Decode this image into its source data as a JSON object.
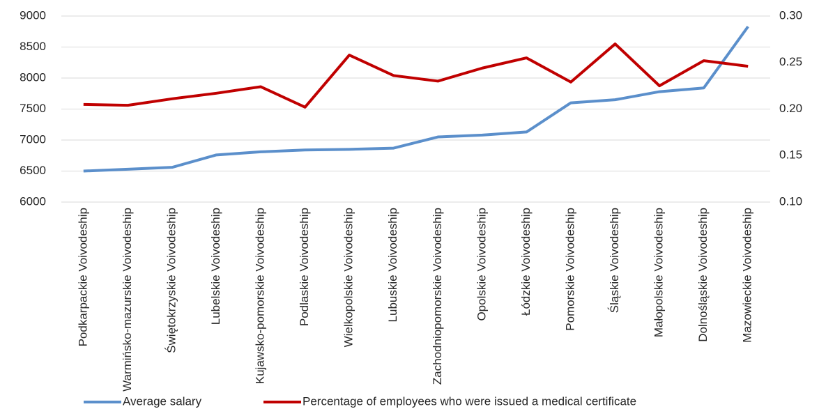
{
  "chart_data": {
    "type": "line",
    "categories": [
      "Podkarpackie Voivodeship",
      "Warmińsko-mazurskie Voivodeship",
      "Świętokrzyskie Voivodeship",
      "Lubelskie Voivodeship",
      "Kujawsko-pomorskie Voivodeship",
      "Podlaskie Voivodeship",
      "Wielkopolskie Voivodeship",
      "Lubuskie Voivodeship",
      "Zachodniopomorskie Voivodeship",
      "Opolskie Voivodeship",
      "Łódzkie Voivodeship",
      "Pomorskie Voivodeship",
      "Śląskie Voivodeship",
      "Małopolskie Voivodeship",
      "Dolnośląskie Voivodeship",
      "Mazowieckie Voivodeship"
    ],
    "series": [
      {
        "name": "Average salary",
        "color": "#5b8fcb",
        "values": [
          6500,
          6530,
          6560,
          6760,
          6810,
          6840,
          6850,
          6870,
          7050,
          7080,
          7130,
          7600,
          7650,
          7780,
          7840,
          8830
        ]
      },
      {
        "name": "Percentage of employees who were issued a medical certificate",
        "color": "#c00000",
        "axis": "y2",
        "values": [
          0.205,
          0.204,
          0.211,
          0.217,
          0.224,
          0.202,
          0.258,
          0.236,
          0.23,
          0.244,
          0.255,
          0.229,
          0.27,
          0.225,
          0.252,
          0.246
        ]
      }
    ],
    "ylim": [
      6000,
      9000
    ],
    "yticks": [
      6000,
      6500,
      7000,
      7500,
      8000,
      8500,
      9000
    ],
    "y2lim": [
      0.1,
      0.3
    ],
    "y2ticks": [
      {
        "value": 0.1,
        "label": "0.10"
      },
      {
        "value": 0.15,
        "label": "0.15"
      },
      {
        "value": 0.2,
        "label": "0.20"
      },
      {
        "value": 0.25,
        "label": "0.25"
      },
      {
        "value": 0.3,
        "label": "0.30"
      }
    ],
    "grid": true
  }
}
